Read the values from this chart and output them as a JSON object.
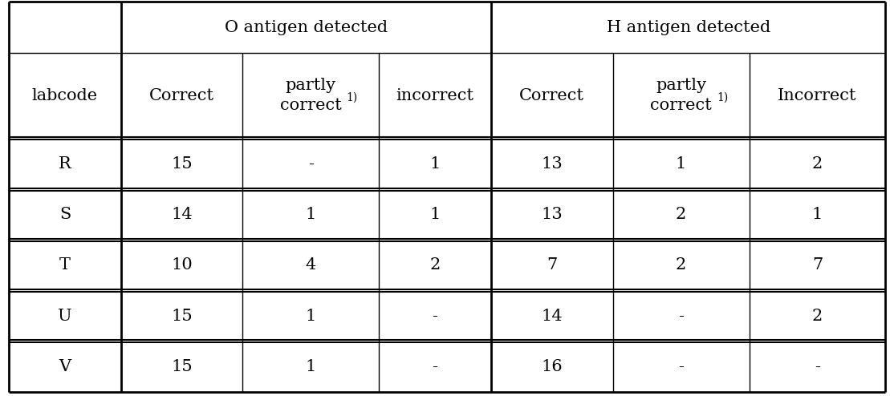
{
  "rows": [
    [
      "R",
      "15",
      "-",
      "1",
      "13",
      "1",
      "2"
    ],
    [
      "S",
      "14",
      "1",
      "1",
      "13",
      "2",
      "1"
    ],
    [
      "T",
      "10",
      "4",
      "2",
      "7",
      "2",
      "7"
    ],
    [
      "U",
      "15",
      "1",
      "-",
      "14",
      "-",
      "2"
    ],
    [
      "V",
      "15",
      "1",
      "-",
      "16",
      "-",
      "-"
    ]
  ],
  "background_color": "#ffffff",
  "line_color": "#000000",
  "text_color": "#000000",
  "font_size": 15,
  "sup_font_size": 10
}
